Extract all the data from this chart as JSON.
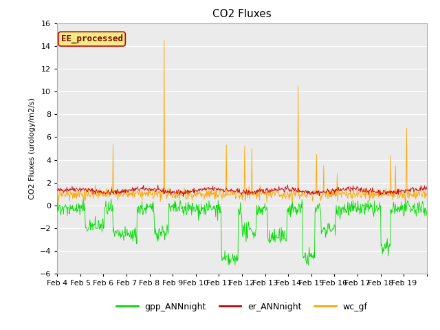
{
  "title": "CO2 Fluxes",
  "ylabel": "CO2 Fluxes (urology/m2/s)",
  "ylim": [
    -6,
    16
  ],
  "yticks": [
    -6,
    -4,
    -2,
    0,
    2,
    4,
    6,
    8,
    10,
    12,
    14,
    16
  ],
  "n_days": 16,
  "n_per_day": 48,
  "xtick_labels": [
    "Feb 4",
    "Feb 5",
    "Feb 6",
    "Feb 7",
    "Feb 8",
    "Feb 9",
    "Feb 10",
    "Feb 11",
    "Feb 12",
    "Feb 13",
    "Feb 14",
    "Feb 15",
    "Feb 16",
    "Feb 17",
    "Feb 18",
    "Feb 19"
  ],
  "color_gpp": "#00dd00",
  "color_er": "#cc0000",
  "color_wc": "#ffa500",
  "legend_labels": [
    "gpp_ANNnight",
    "er_ANNnight",
    "wc_gf"
  ],
  "annotation_text": "EE_processed",
  "annotation_box_facecolor": "#eeee88",
  "annotation_box_edgecolor": "#cc0000",
  "annotation_text_color": "#880000",
  "fig_facecolor": "#ffffff",
  "plot_bg_color": "#ebebeb",
  "linewidth_thin": 0.6,
  "title_fontsize": 11,
  "label_fontsize": 8,
  "tick_fontsize": 8,
  "legend_fontsize": 9
}
